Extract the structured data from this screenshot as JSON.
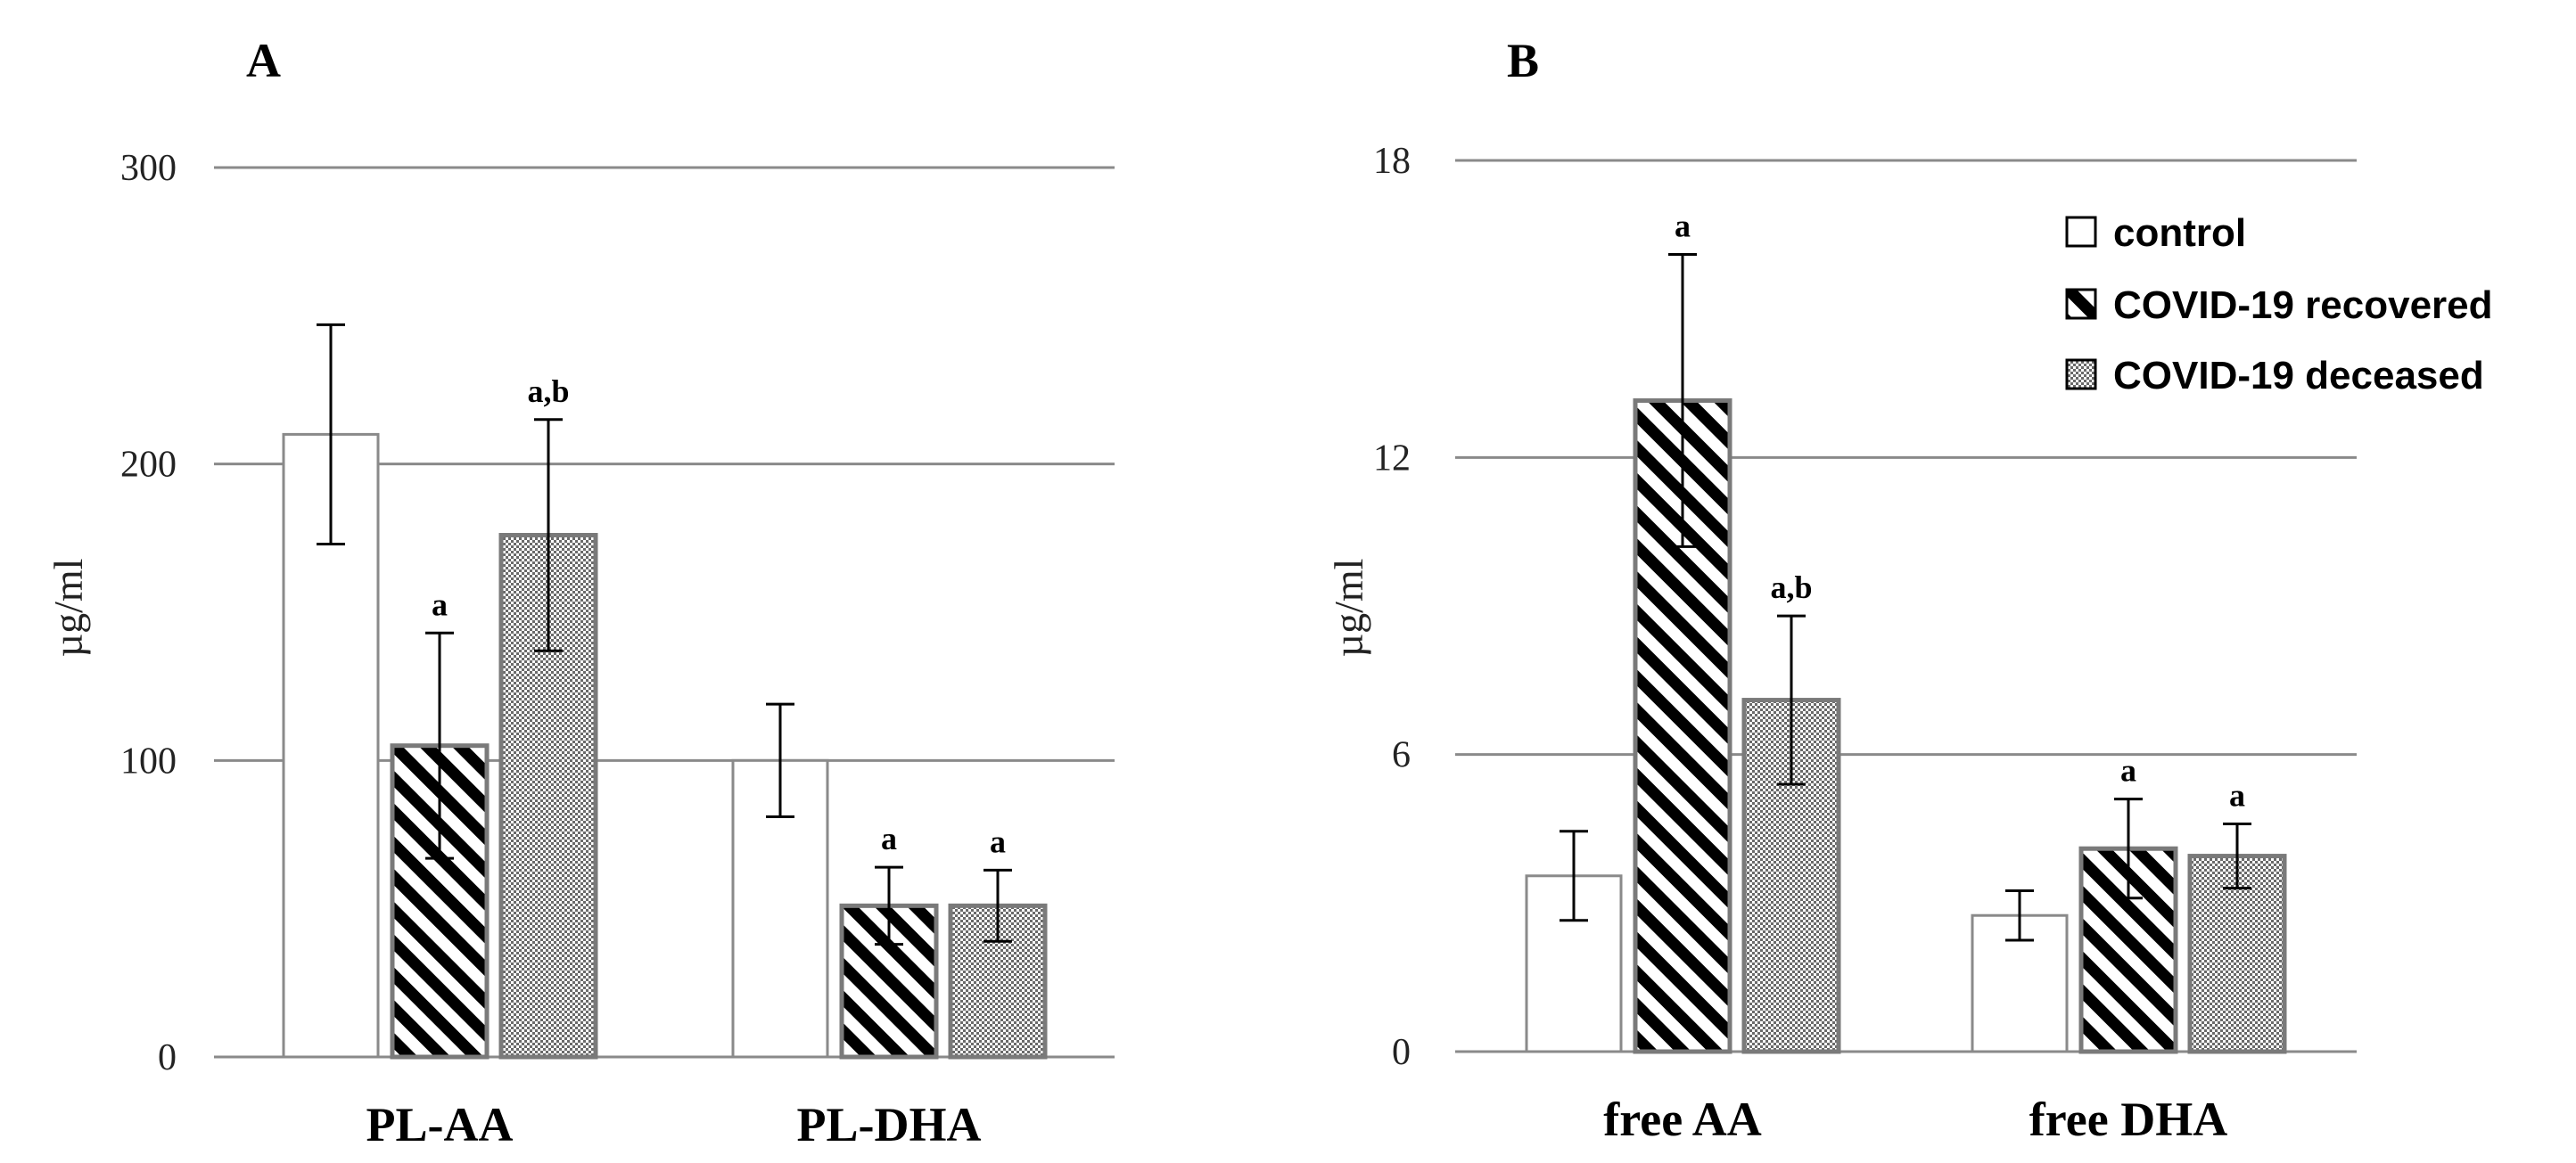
{
  "chart_data": [
    {
      "type": "bar",
      "panel": "A",
      "title": "",
      "xlabel": "",
      "ylabel": "µg/ml",
      "ylim": [
        0,
        300
      ],
      "yticks": [
        0,
        100,
        200,
        300
      ],
      "grid": true,
      "categories": [
        "PL-AA",
        "PL-DHA"
      ],
      "series": [
        {
          "name": "control",
          "values": [
            210,
            100
          ],
          "errors": [
            37,
            19
          ],
          "labels": [
            "",
            ""
          ]
        },
        {
          "name": "COVID-19 recovered",
          "values": [
            105,
            51
          ],
          "errors": [
            38,
            13
          ],
          "labels": [
            "a",
            "a"
          ]
        },
        {
          "name": "COVID-19 deceased",
          "values": [
            176,
            51
          ],
          "errors": [
            39,
            12
          ],
          "labels": [
            "a,b",
            "a"
          ]
        }
      ]
    },
    {
      "type": "bar",
      "panel": "B",
      "title": "",
      "xlabel": "",
      "ylabel": "µg/ml",
      "ylim": [
        0,
        18
      ],
      "yticks": [
        0,
        6,
        12,
        18
      ],
      "grid": true,
      "legend_position": "top-right",
      "categories": [
        "free AA",
        "free DHA"
      ],
      "series": [
        {
          "name": "control",
          "values": [
            3.55,
            2.75
          ],
          "errors": [
            0.9,
            0.5
          ],
          "labels": [
            "",
            ""
          ]
        },
        {
          "name": "COVID-19 recovered",
          "values": [
            13.15,
            4.1
          ],
          "errors": [
            2.95,
            1.0
          ],
          "labels": [
            "a",
            "a"
          ]
        },
        {
          "name": "COVID-19 deceased",
          "values": [
            7.1,
            3.95
          ],
          "errors": [
            1.7,
            0.65
          ],
          "labels": [
            "a,b",
            "a"
          ]
        }
      ]
    }
  ],
  "colors": {
    "gridline": "#8a8a8a",
    "control_fill": "#ffffff",
    "bar_border": "#7a7a7a",
    "text": "#000000"
  }
}
